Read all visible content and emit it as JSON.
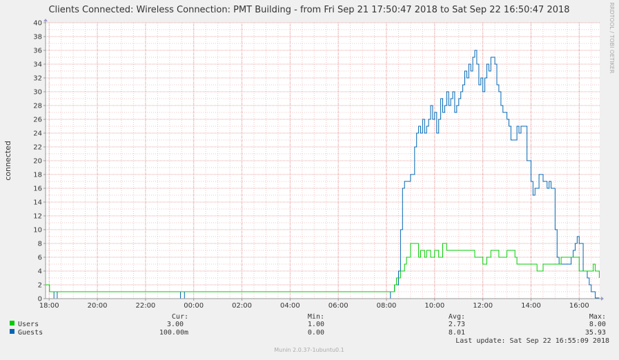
{
  "chart_data": {
    "type": "line",
    "title": "Clients Connected: Wireless Connection: PMT Building - from Fri Sep 21 17:50:47 2018 to Sat Sep 22 16:50:47 2018",
    "ylabel": "connected",
    "watermark": "RRDTOOL / TOBI OETIKER",
    "footer": "Munin 2.0.37-1ubuntu0.1",
    "last_update": "Last update: Sat Sep 22 16:55:09 2018",
    "ylim": [
      0,
      40
    ],
    "yticks": [
      "0",
      "2",
      "4",
      "6",
      "8",
      "10",
      "12",
      "14",
      "16",
      "18",
      "20",
      "22",
      "24",
      "26",
      "28",
      "30",
      "32",
      "34",
      "36",
      "38",
      "40"
    ],
    "xlim": [
      17.85,
      16.85
    ],
    "xticks": [
      {
        "label": "18:00",
        "hour": 18
      },
      {
        "label": "20:00",
        "hour": 20
      },
      {
        "label": "22:00",
        "hour": 22
      },
      {
        "label": "00:00",
        "hour": 24
      },
      {
        "label": "02:00",
        "hour": 26
      },
      {
        "label": "04:00",
        "hour": 28
      },
      {
        "label": "06:00",
        "hour": 30
      },
      {
        "label": "08:00",
        "hour": 32
      },
      {
        "label": "10:00",
        "hour": 34
      },
      {
        "label": "12:00",
        "hour": 36
      },
      {
        "label": "14:00",
        "hour": 38
      },
      {
        "label": "16:00",
        "hour": 40
      }
    ],
    "legend_headers": {
      "cur": "Cur:",
      "min": "Min:",
      "avg": "Avg:",
      "max": "Max:"
    },
    "series": [
      {
        "name": "Users",
        "color": "#00cc00",
        "cur": "3.00",
        "min": "1.00",
        "avg": "2.73",
        "max": "8.00",
        "x": [
          "17:50",
          "18:00",
          "18:01",
          "00:00",
          "08:00",
          "08:10",
          "08:20",
          "08:25",
          "08:35",
          "08:45",
          "08:50",
          "09:00",
          "09:10",
          "09:20",
          "09:25",
          "09:35",
          "09:40",
          "09:50",
          "10:00",
          "10:10",
          "10:20",
          "10:30",
          "10:40",
          "10:50",
          "11:00",
          "11:05",
          "11:15",
          "11:20",
          "11:30",
          "11:40",
          "11:50",
          "12:00",
          "12:10",
          "12:20",
          "12:30",
          "12:40",
          "12:50",
          "13:00",
          "13:05",
          "13:10",
          "13:20",
          "13:25",
          "13:35",
          "13:45",
          "13:55",
          "14:05",
          "14:10",
          "14:15",
          "14:30",
          "14:40",
          "14:50",
          "15:05",
          "15:15",
          "15:25",
          "15:30",
          "15:40",
          "15:50",
          "16:00",
          "16:10",
          "16:20",
          "16:30",
          "16:35",
          "16:40",
          "16:45",
          "16:50"
        ],
        "values": [
          2,
          2,
          1,
          1,
          1,
          1,
          2,
          3,
          4,
          5,
          6,
          8,
          8,
          6,
          7,
          6,
          7,
          6,
          7,
          6,
          8,
          7,
          7,
          7,
          7,
          7,
          7,
          7,
          7,
          6,
          6,
          5,
          6,
          7,
          7,
          6,
          6,
          7,
          7,
          7,
          6,
          5,
          5,
          5,
          5,
          5,
          5,
          4,
          5,
          5,
          5,
          5,
          6,
          6,
          6,
          6,
          6,
          4,
          4,
          4,
          4,
          5,
          4,
          4,
          3
        ]
      },
      {
        "name": "Guests",
        "color": "#0066b3",
        "cur": "100.00m",
        "min": "0.00",
        "avg": "8.01",
        "max": "35.93",
        "x": [
          "17:50",
          "18:10",
          "18:12",
          "18:18",
          "18:20",
          "23:25",
          "23:27",
          "23:35",
          "23:37",
          "08:00",
          "08:10",
          "08:20",
          "08:30",
          "08:35",
          "08:40",
          "08:45",
          "08:55",
          "09:00",
          "09:10",
          "09:15",
          "09:20",
          "09:25",
          "09:30",
          "09:35",
          "09:40",
          "09:45",
          "09:50",
          "09:55",
          "10:00",
          "10:05",
          "10:10",
          "10:15",
          "10:20",
          "10:25",
          "10:30",
          "10:35",
          "10:40",
          "10:45",
          "10:50",
          "10:55",
          "11:00",
          "11:05",
          "11:10",
          "11:15",
          "11:20",
          "11:25",
          "11:30",
          "11:35",
          "11:40",
          "11:45",
          "11:50",
          "11:55",
          "12:00",
          "12:05",
          "12:10",
          "12:15",
          "12:20",
          "12:25",
          "12:30",
          "12:35",
          "12:40",
          "12:45",
          "12:50",
          "12:55",
          "13:00",
          "13:05",
          "13:10",
          "13:15",
          "13:20",
          "13:25",
          "13:30",
          "13:35",
          "13:40",
          "13:50",
          "14:00",
          "14:05",
          "14:10",
          "14:20",
          "14:30",
          "14:40",
          "14:45",
          "14:50",
          "15:00",
          "15:05",
          "15:10",
          "15:15",
          "15:20",
          "15:30",
          "15:40",
          "15:45",
          "15:50",
          "15:55",
          "16:00",
          "16:10",
          "16:20",
          "16:25",
          "16:30",
          "16:35",
          "16:40",
          "16:45",
          "16:50"
        ],
        "values": [
          0,
          0,
          1,
          1,
          0,
          0,
          1,
          1,
          0,
          0,
          1,
          2,
          4,
          10,
          16,
          17,
          17,
          18,
          22,
          24,
          25,
          24,
          26,
          24,
          25,
          26,
          28,
          26,
          27,
          24,
          26,
          29,
          27,
          28,
          30,
          28,
          29,
          30,
          27,
          28,
          29,
          30,
          31,
          33,
          32,
          34,
          33,
          35,
          36,
          34,
          31,
          32,
          30,
          32,
          34,
          33,
          35,
          35,
          34,
          31,
          30,
          28,
          27,
          27,
          26,
          25,
          23,
          23,
          23,
          25,
          24,
          25,
          25,
          20,
          17,
          15,
          16,
          18,
          17,
          16,
          17,
          16,
          10,
          6,
          5,
          5,
          5,
          5,
          6,
          7,
          8,
          9,
          8,
          4,
          3,
          2,
          1,
          1,
          0.1,
          0.1,
          0.1
        ]
      }
    ]
  }
}
